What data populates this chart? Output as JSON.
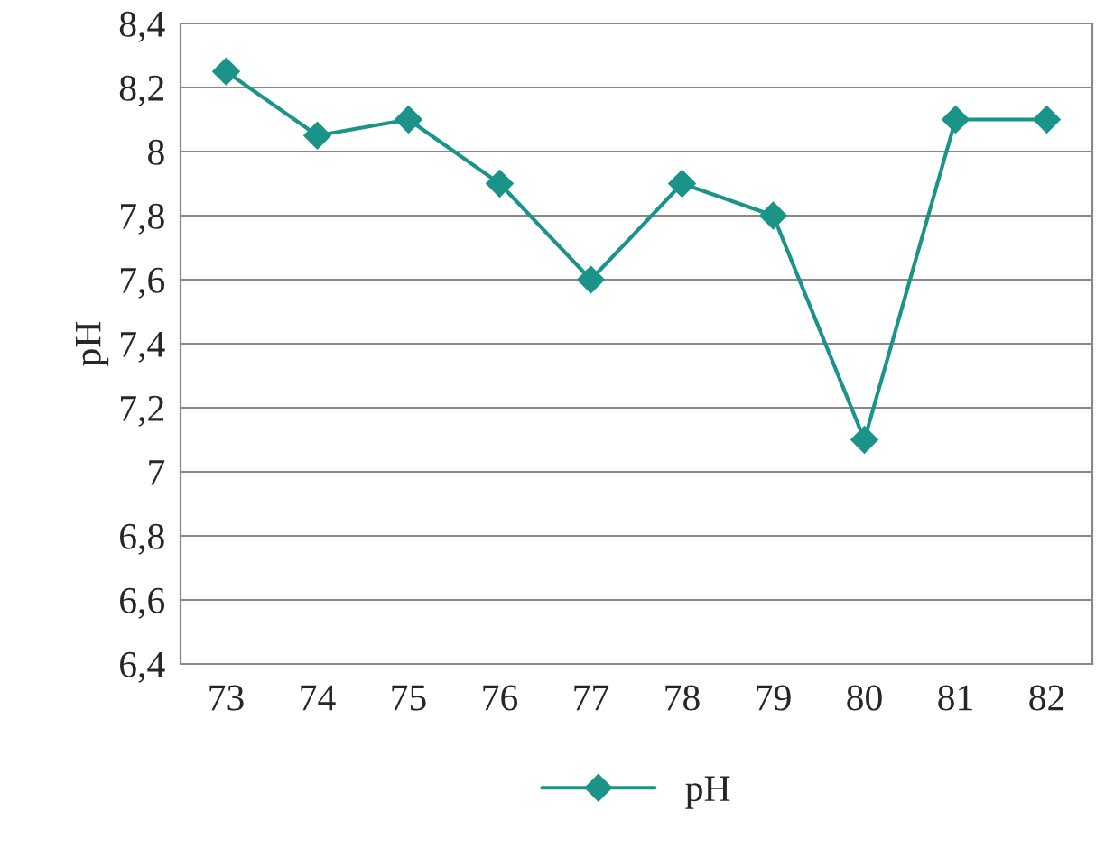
{
  "chart_data": {
    "type": "line",
    "ylabel": "pH",
    "categories": [
      "73",
      "74",
      "75",
      "76",
      "77",
      "78",
      "79",
      "80",
      "81",
      "82"
    ],
    "series": [
      {
        "name": "pH",
        "color": "#1a9488",
        "values": [
          8.25,
          8.05,
          8.1,
          7.9,
          7.6,
          7.9,
          7.8,
          7.1,
          8.1,
          8.1
        ]
      }
    ],
    "ylim": [
      6.4,
      8.4
    ],
    "yticks": [
      {
        "value": 6.4,
        "label": "6,4"
      },
      {
        "value": 6.6,
        "label": "6,6"
      },
      {
        "value": 6.8,
        "label": "6,8"
      },
      {
        "value": 7,
        "label": "7"
      },
      {
        "value": 7.2,
        "label": "7,2"
      },
      {
        "value": 7.4,
        "label": "7,4"
      },
      {
        "value": 7.6,
        "label": "7,6"
      },
      {
        "value": 7.8,
        "label": "7,8"
      },
      {
        "value": 8,
        "label": "8"
      },
      {
        "value": 8.2,
        "label": "8,2"
      },
      {
        "value": 8.4,
        "label": "8,4"
      }
    ],
    "grid": "y",
    "legend": "bottom",
    "marker": "diamond",
    "line_style": "solid"
  }
}
